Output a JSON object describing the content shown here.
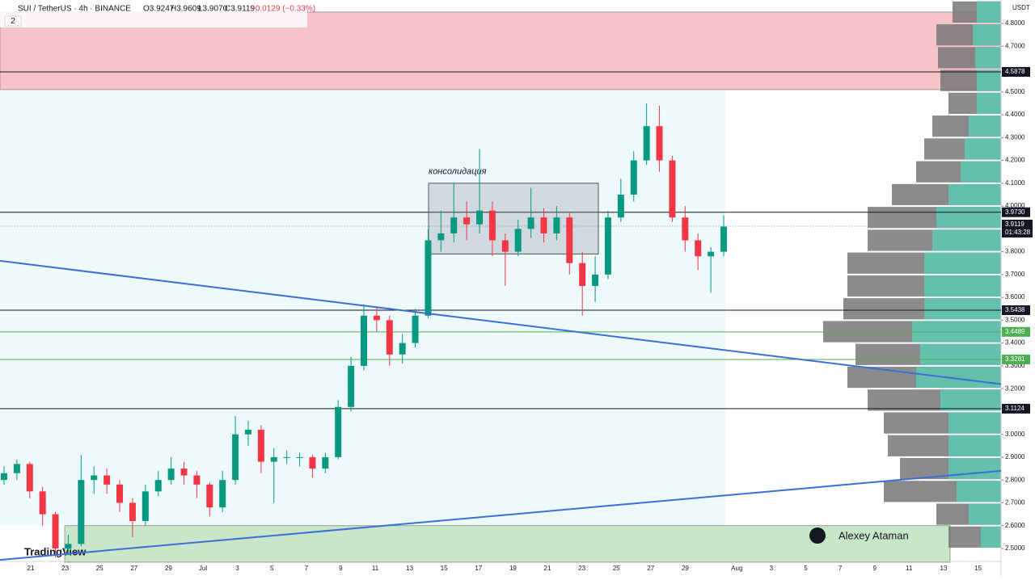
{
  "chart_data": {
    "type": "candlestick",
    "header": {
      "symbol": "SUI / TetherUS · 4h · BINANCE",
      "open": "O3.9247",
      "high": "H3.9609",
      "low": "L3.9070",
      "close": "C3.9119",
      "change": "−0.0129 (−0.33%)",
      "indicators": "2"
    },
    "currency": "USDT",
    "up_color": "#089981",
    "down_color": "#f23645",
    "ylim": [
      2.44,
      4.9
    ],
    "yticks": [
      {
        "value": 4.8,
        "label": "4.8000"
      },
      {
        "value": 4.7,
        "label": "4.7000"
      },
      {
        "value": 4.5,
        "label": "4.5000"
      },
      {
        "value": 4.4,
        "label": "4.4000"
      },
      {
        "value": 4.3,
        "label": "4.3000"
      },
      {
        "value": 4.2,
        "label": "4.2000"
      },
      {
        "value": 4.1,
        "label": "4.1000"
      },
      {
        "value": 4.0,
        "label": "4.0000"
      },
      {
        "value": 3.8,
        "label": "3.8000"
      },
      {
        "value": 3.7,
        "label": "3.7000"
      },
      {
        "value": 3.6,
        "label": "3.6000"
      },
      {
        "value": 3.5,
        "label": "3.5000"
      },
      {
        "value": 3.4,
        "label": "3.4000"
      },
      {
        "value": 3.3,
        "label": "3.3000"
      },
      {
        "value": 3.2,
        "label": "3.2000"
      },
      {
        "value": 3.0,
        "label": "3.0000"
      },
      {
        "value": 2.9,
        "label": "2.9000"
      },
      {
        "value": 2.8,
        "label": "2.8000"
      },
      {
        "value": 2.7,
        "label": "2.7000"
      },
      {
        "value": 2.6,
        "label": "2.6000"
      },
      {
        "value": 2.5,
        "label": "2.5000"
      }
    ],
    "dates": [
      "21",
      "23",
      "25",
      "27",
      "29",
      "Jul",
      "3",
      "5",
      "7",
      "9",
      "11",
      "13",
      "15",
      "17",
      "19",
      "21",
      "23",
      "25",
      "27",
      "29",
      "Aug",
      "3",
      "5",
      "7",
      "9",
      "11",
      "13",
      "15"
    ],
    "candles": [
      [
        2.8,
        2.86,
        2.78,
        2.83
      ],
      [
        2.83,
        2.89,
        2.8,
        2.87
      ],
      [
        2.87,
        2.88,
        2.72,
        2.75
      ],
      [
        2.75,
        2.77,
        2.6,
        2.65
      ],
      [
        2.65,
        2.66,
        2.46,
        2.5
      ],
      [
        2.5,
        2.56,
        2.47,
        2.52
      ],
      [
        2.52,
        2.91,
        2.51,
        2.8
      ],
      [
        2.8,
        2.86,
        2.74,
        2.82
      ],
      [
        2.82,
        2.85,
        2.74,
        2.78
      ],
      [
        2.78,
        2.8,
        2.66,
        2.7
      ],
      [
        2.7,
        2.72,
        2.55,
        2.62
      ],
      [
        2.62,
        2.78,
        2.6,
        2.75
      ],
      [
        2.75,
        2.84,
        2.73,
        2.8
      ],
      [
        2.8,
        2.9,
        2.78,
        2.85
      ],
      [
        2.85,
        2.88,
        2.78,
        2.82
      ],
      [
        2.82,
        2.84,
        2.72,
        2.78
      ],
      [
        2.78,
        2.79,
        2.64,
        2.68
      ],
      [
        2.68,
        2.84,
        2.66,
        2.8
      ],
      [
        2.8,
        3.08,
        2.78,
        3.0
      ],
      [
        3.0,
        3.06,
        2.95,
        3.02
      ],
      [
        3.02,
        3.04,
        2.83,
        2.88
      ],
      [
        2.88,
        2.94,
        2.7,
        2.9
      ],
      [
        2.9,
        2.93,
        2.87,
        2.9
      ],
      [
        2.9,
        2.92,
        2.86,
        2.9
      ],
      [
        2.9,
        2.91,
        2.81,
        2.85
      ],
      [
        2.85,
        2.92,
        2.83,
        2.9
      ],
      [
        2.9,
        3.15,
        2.89,
        3.12
      ],
      [
        3.12,
        3.34,
        3.1,
        3.3
      ],
      [
        3.3,
        3.57,
        3.28,
        3.52
      ],
      [
        3.52,
        3.56,
        3.45,
        3.5
      ],
      [
        3.5,
        3.52,
        3.3,
        3.35
      ],
      [
        3.35,
        3.44,
        3.31,
        3.4
      ],
      [
        3.4,
        3.55,
        3.38,
        3.52
      ],
      [
        3.52,
        3.9,
        3.51,
        3.85
      ],
      [
        3.85,
        3.98,
        3.8,
        3.88
      ],
      [
        3.88,
        4.1,
        3.84,
        3.95
      ],
      [
        3.95,
        4.02,
        3.85,
        3.92
      ],
      [
        3.92,
        4.25,
        3.88,
        3.98
      ],
      [
        3.98,
        4.02,
        3.78,
        3.85
      ],
      [
        3.85,
        3.88,
        3.65,
        3.8
      ],
      [
        3.8,
        3.94,
        3.78,
        3.9
      ],
      [
        3.9,
        4.08,
        3.86,
        3.95
      ],
      [
        3.95,
        3.99,
        3.84,
        3.88
      ],
      [
        3.88,
        4.0,
        3.85,
        3.95
      ],
      [
        3.95,
        3.97,
        3.7,
        3.75
      ],
      [
        3.75,
        3.8,
        3.52,
        3.65
      ],
      [
        3.65,
        3.78,
        3.58,
        3.7
      ],
      [
        3.7,
        3.98,
        3.68,
        3.95
      ],
      [
        3.95,
        4.12,
        3.93,
        4.05
      ],
      [
        4.05,
        4.24,
        4.02,
        4.2
      ],
      [
        4.2,
        4.45,
        4.18,
        4.35
      ],
      [
        4.35,
        4.44,
        4.15,
        4.2
      ],
      [
        4.2,
        4.22,
        3.93,
        3.95
      ],
      [
        3.95,
        4.0,
        3.8,
        3.85
      ],
      [
        3.85,
        3.88,
        3.72,
        3.78
      ],
      [
        3.78,
        3.82,
        3.62,
        3.8
      ],
      [
        3.8,
        3.96,
        3.78,
        3.91
      ]
    ],
    "zones": [
      {
        "top": 4.85,
        "bottom": 4.51,
        "color": "#f7c3c8"
      },
      {
        "top": 2.6,
        "bottom": 2.44,
        "color": "#c8e6c9"
      }
    ],
    "box": {
      "top": 4.1,
      "bottom": 3.79,
      "label": "консолидация"
    },
    "levels": [
      {
        "value": 4.5878,
        "label": "4.5878",
        "color": "#131722"
      },
      {
        "value": 3.973,
        "label": "3.9730",
        "color": "#131722"
      },
      {
        "value": 3.5438,
        "label": "3.5438",
        "color": "#131722"
      },
      {
        "value": 3.4489,
        "label": "3.4489",
        "color": "#4caf50"
      },
      {
        "value": 3.3281,
        "label": "3.3281",
        "color": "#4caf50"
      },
      {
        "value": 3.1124,
        "label": "3.1124",
        "color": "#131722"
      }
    ],
    "last_price": {
      "value": 3.9119,
      "label": "3.9119",
      "countdown": "01:43:28"
    },
    "trendlines": [
      {
        "start": 3.76,
        "end": 3.22,
        "color": "#3a6fd8"
      },
      {
        "start": 2.45,
        "end": 2.84,
        "color": "#3a6fd8"
      }
    ],
    "volume_profile": {
      "prices": [
        4.85,
        4.75,
        4.65,
        4.55,
        4.45,
        4.35,
        4.25,
        4.15,
        4.05,
        3.95,
        3.85,
        3.75,
        3.65,
        3.55,
        3.45,
        3.35,
        3.25,
        3.15,
        3.05,
        2.95,
        2.85,
        2.75,
        2.65,
        2.55
      ],
      "total": [
        60,
        80,
        78,
        75,
        65,
        85,
        95,
        105,
        135,
        165,
        165,
        190,
        190,
        195,
        220,
        180,
        190,
        165,
        145,
        140,
        125,
        145,
        80,
        65
      ],
      "buy": [
        30,
        35,
        32,
        30,
        30,
        40,
        45,
        50,
        65,
        80,
        85,
        95,
        95,
        95,
        110,
        100,
        105,
        75,
        65,
        65,
        65,
        55,
        40,
        25
      ],
      "color": "#777777",
      "buy_color": "#5fc4b0"
    },
    "branding": "TradingView",
    "author": "Alexey Ataman"
  }
}
